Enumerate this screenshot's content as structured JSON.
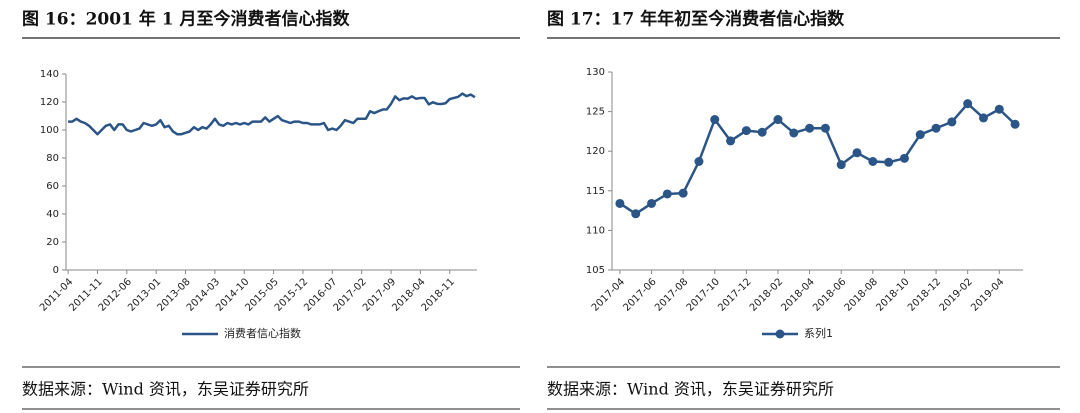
{
  "chart_data": [
    {
      "type": "line",
      "title": "图 16：2001 年 1 月至今消费者信心指数",
      "source": "数据来源：Wind 资讯，东吴证券研究所",
      "categories": [
        "2011-04",
        null,
        null,
        null,
        null,
        null,
        null,
        "2011-11",
        null,
        null,
        null,
        null,
        null,
        null,
        "2012-06",
        null,
        null,
        null,
        null,
        null,
        null,
        "2013-01",
        null,
        null,
        null,
        null,
        null,
        null,
        "2013-08",
        null,
        null,
        null,
        null,
        null,
        null,
        "2014-03",
        null,
        null,
        null,
        null,
        null,
        null,
        "2014-10",
        null,
        null,
        null,
        null,
        null,
        null,
        "2015-05",
        null,
        null,
        null,
        null,
        null,
        null,
        "2015-12",
        null,
        null,
        null,
        null,
        null,
        null,
        "2016-07",
        null,
        null,
        null,
        null,
        null,
        null,
        "2017-02",
        null,
        null,
        null,
        null,
        null,
        null,
        "2017-09",
        null,
        null,
        null,
        null,
        null,
        null,
        "2018-04",
        null,
        null,
        null,
        null,
        null,
        null,
        "2018-11",
        null,
        null,
        null,
        null,
        null,
        null
      ],
      "series": [
        {
          "name": "消费者信心指数",
          "color": "#2b5586",
          "values": [
            106,
            106,
            108,
            106,
            105,
            103,
            100,
            97,
            100,
            103,
            104,
            100,
            104,
            104,
            100,
            99,
            100,
            101,
            105,
            104,
            103,
            104,
            107,
            102,
            103,
            99,
            97,
            97,
            98,
            99,
            102,
            100,
            102,
            101,
            104,
            108,
            104,
            103,
            105,
            104,
            105,
            104,
            105,
            104,
            106,
            106,
            106,
            109,
            106,
            108,
            110,
            107,
            106,
            105,
            106,
            106,
            105,
            105,
            104,
            104,
            104,
            105,
            100,
            101,
            100,
            103,
            107,
            106,
            105,
            108,
            108,
            108,
            113.4,
            112.1,
            113.4,
            114.6,
            114.7,
            118.7,
            124,
            121.3,
            122.6,
            122.4,
            124,
            122.3,
            122.9,
            122.9,
            118.3,
            119.8,
            118.7,
            118.6,
            119.1,
            122.1,
            122.9,
            123.7,
            126,
            124.2,
            125.3,
            123.4
          ]
        }
      ],
      "ylim": [
        0,
        140
      ],
      "yticks": [
        0,
        20,
        40,
        60,
        80,
        100,
        120,
        140
      ],
      "markers": false
    },
    {
      "type": "line",
      "title": "图 17：17 年年初至今消费者信心指数",
      "source": "数据来源：Wind 资讯，东吴证券研究所",
      "categories": [
        "2017-04",
        null,
        "2017-06",
        null,
        "2017-08",
        null,
        "2017-10",
        null,
        "2017-12",
        null,
        "2018-02",
        null,
        "2018-04",
        null,
        "2018-06",
        null,
        "2018-08",
        null,
        "2018-10",
        null,
        "2018-12",
        null,
        "2019-02",
        null,
        "2019-04",
        null
      ],
      "series": [
        {
          "name": "系列1",
          "color": "#2b5586",
          "values": [
            113.4,
            112.1,
            113.4,
            114.6,
            114.7,
            118.7,
            124,
            121.3,
            122.6,
            122.4,
            124,
            122.3,
            122.9,
            122.9,
            118.3,
            119.8,
            118.7,
            118.6,
            119.1,
            122.1,
            122.9,
            123.7,
            126,
            124.2,
            125.3,
            123.4
          ]
        }
      ],
      "ylim": [
        105,
        130
      ],
      "yticks": [
        105,
        110,
        115,
        120,
        125,
        130
      ],
      "markers": true
    }
  ]
}
